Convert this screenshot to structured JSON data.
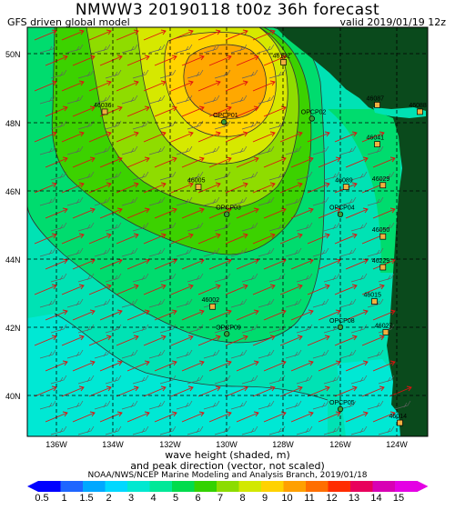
{
  "header": {
    "title": "NMWW3 20190118 t00z    36h forecast",
    "model": "GFS driven global model",
    "valid": "valid 2019/01/19 12z"
  },
  "map": {
    "lat_labels": [
      "50N",
      "48N",
      "46N",
      "44N",
      "42N",
      "40N"
    ],
    "lon_labels": [
      "136W",
      "134W",
      "132W",
      "130W",
      "128W",
      "126W",
      "124W"
    ],
    "buoys": [
      {
        "id": "46036",
        "lon": -134.3,
        "lat": 48.3
      },
      {
        "id": "OPCP01",
        "lon": -130.1,
        "lat": 48.0
      },
      {
        "id": "46132",
        "lon": -128.0,
        "lat": 49.75
      },
      {
        "id": "OPCP02",
        "lon": -127.0,
        "lat": 48.1
      },
      {
        "id": "46005",
        "lon": -131.0,
        "lat": 46.1
      },
      {
        "id": "OPCP03",
        "lon": -130.0,
        "lat": 45.3
      },
      {
        "id": "46089",
        "lon": -125.8,
        "lat": 46.1
      },
      {
        "id": "OPCP04",
        "lon": -126.0,
        "lat": 45.3
      },
      {
        "id": "46002",
        "lon": -130.5,
        "lat": 42.6
      },
      {
        "id": "OPCP09",
        "lon": -130.0,
        "lat": 41.8
      },
      {
        "id": "OPCP08",
        "lon": -126.0,
        "lat": 42.0
      },
      {
        "id": "46015",
        "lon": -124.8,
        "lat": 42.75
      },
      {
        "id": "OPCP05",
        "lon": -126.0,
        "lat": 39.6
      },
      {
        "id": "46014",
        "lon": -123.9,
        "lat": 39.2
      },
      {
        "id": "46087",
        "lon": -124.7,
        "lat": 48.5
      },
      {
        "id": "46088",
        "lon": -123.2,
        "lat": 48.3
      },
      {
        "id": "46041",
        "lon": -124.7,
        "lat": 47.35
      },
      {
        "id": "46029",
        "lon": -124.5,
        "lat": 46.15
      },
      {
        "id": "46050",
        "lon": -124.5,
        "lat": 44.65
      },
      {
        "id": "46229",
        "lon": -124.5,
        "lat": 43.75
      },
      {
        "id": "46027",
        "lon": -124.4,
        "lat": 41.85
      }
    ]
  },
  "caption": {
    "line1": "wave height (shaded, m)",
    "line2": "and peak direction (vector, not scaled)",
    "credit": "NOAA/NWS/NCEP Marine Modeling and Analysis Branch, 2019/01/18"
  },
  "colorbar": {
    "labels": [
      "0.5",
      "1",
      "1.5",
      "2",
      "3",
      "4",
      "5",
      "6",
      "7",
      "8",
      "9",
      "10",
      "11",
      "12",
      "13",
      "14",
      "15"
    ],
    "colors": [
      "#0000ff",
      "#1f66ff",
      "#00a8ff",
      "#00d8ff",
      "#00e8d0",
      "#00e898",
      "#00dc4c",
      "#34d200",
      "#8cdc00",
      "#d2e800",
      "#ffd200",
      "#ffa000",
      "#ff6e00",
      "#ff2c00",
      "#e8005c",
      "#d800b4",
      "#e400e4"
    ]
  }
}
